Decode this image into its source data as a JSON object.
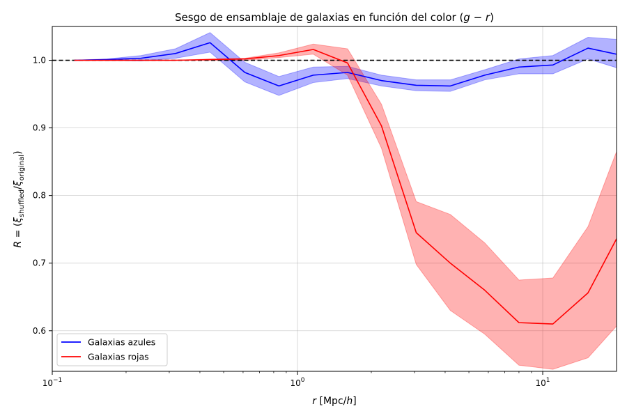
{
  "chart_data": {
    "type": "line",
    "title": "Sesgo de ensamblaje de galaxias en función del color (g − r)",
    "xlabel": "r [Mpc/h]",
    "ylabel": "R = (ξshuffled/ξoriginal)",
    "xscale": "log",
    "xlim": [
      0.1,
      20
    ],
    "ylim": [
      0.54,
      1.05
    ],
    "xticks": [
      {
        "value": 0.1,
        "base": "10",
        "exp": "−1"
      },
      {
        "value": 1,
        "base": "10",
        "exp": "0"
      },
      {
        "value": 10,
        "base": "10",
        "exp": "1"
      }
    ],
    "yticks": [
      {
        "value": 0.6,
        "label": "0.6"
      },
      {
        "value": 0.7,
        "label": "0.7"
      },
      {
        "value": 0.8,
        "label": "0.8"
      },
      {
        "value": 0.9,
        "label": "0.9"
      },
      {
        "value": 1.0,
        "label": "1.0"
      }
    ],
    "grid": true,
    "reference_line": {
      "y": 1.0,
      "style": "dashed",
      "color": "#000000"
    },
    "legend": {
      "position": "lower-left"
    },
    "series": [
      {
        "name": "Galaxias azules",
        "color": "#0000ff",
        "fill_color": "#0000ff",
        "x": [
          0.123,
          0.167,
          0.23,
          0.318,
          0.44,
          0.61,
          0.84,
          1.16,
          1.6,
          2.2,
          3.05,
          4.2,
          5.8,
          8.0,
          11.0,
          15.3,
          20.0
        ],
        "y": [
          1.0,
          1.001,
          1.003,
          1.01,
          1.026,
          0.982,
          0.962,
          0.978,
          0.982,
          0.97,
          0.963,
          0.962,
          0.978,
          0.99,
          0.993,
          1.018,
          1.009
        ],
        "lower": [
          1.0,
          1.0,
          0.999,
          1.003,
          1.012,
          0.968,
          0.948,
          0.967,
          0.973,
          0.962,
          0.955,
          0.954,
          0.971,
          0.98,
          0.98,
          1.002,
          0.989
        ],
        "upper": [
          1.0,
          1.002,
          1.007,
          1.017,
          1.041,
          0.997,
          0.976,
          0.99,
          0.991,
          0.978,
          0.971,
          0.971,
          0.986,
          1.002,
          1.007,
          1.034,
          1.031
        ]
      },
      {
        "name": "Galaxias rojas",
        "color": "#ff0000",
        "fill_color": "#ff0000",
        "x": [
          0.123,
          0.167,
          0.23,
          0.318,
          0.44,
          0.61,
          0.84,
          1.16,
          1.6,
          2.2,
          3.05,
          4.2,
          5.8,
          8.0,
          11.0,
          15.3,
          20.0
        ],
        "y": [
          1.0,
          1.0,
          1.0,
          1.0,
          1.001,
          1.002,
          1.007,
          1.016,
          0.996,
          0.903,
          0.745,
          0.7,
          0.66,
          0.612,
          0.61,
          0.656,
          0.736
        ],
        "lower": [
          1.0,
          1.0,
          1.0,
          1.0,
          1.0,
          1.0,
          1.004,
          1.009,
          0.978,
          0.87,
          0.698,
          0.63,
          0.595,
          0.549,
          0.543,
          0.56,
          0.607
        ],
        "upper": [
          1.0,
          1.0,
          1.0,
          1.0,
          1.002,
          1.003,
          1.011,
          1.024,
          1.017,
          0.935,
          0.791,
          0.772,
          0.73,
          0.675,
          0.678,
          0.754,
          0.865
        ]
      }
    ]
  }
}
